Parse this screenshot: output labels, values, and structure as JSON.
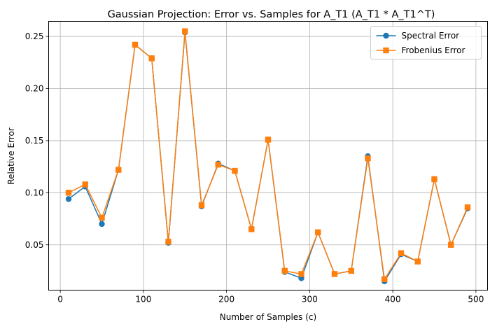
{
  "chart_data": {
    "type": "line",
    "title": "Gaussian Projection: Error vs. Samples for A_T1 (A_T1 * A_T1^T)",
    "xlabel": "Number of Samples (c)",
    "ylabel": "Relative Error",
    "xlim": [
      -14,
      514
    ],
    "ylim": [
      0.0065,
      0.2645
    ],
    "xticks": [
      0,
      100,
      200,
      300,
      400,
      500
    ],
    "yticks": [
      0.05,
      0.1,
      0.15,
      0.2,
      0.25
    ],
    "ytick_labels": [
      "0.05",
      "0.10",
      "0.15",
      "0.20",
      "0.25"
    ],
    "grid": true,
    "legend_position": "top-right",
    "x": [
      10,
      30,
      50,
      70,
      90,
      110,
      130,
      150,
      170,
      190,
      210,
      230,
      250,
      270,
      290,
      310,
      330,
      350,
      370,
      390,
      410,
      430,
      450,
      470,
      490
    ],
    "series": [
      {
        "name": "Spectral Error",
        "color": "#1f77b4",
        "marker": "circle",
        "values": [
          0.094,
          0.106,
          0.07,
          0.122,
          0.242,
          0.229,
          0.052,
          0.254,
          0.087,
          0.128,
          0.121,
          0.065,
          0.151,
          0.024,
          0.018,
          0.062,
          0.022,
          0.025,
          0.135,
          0.015,
          0.041,
          0.034,
          0.113,
          0.05,
          0.085
        ]
      },
      {
        "name": "Frobenius Error",
        "color": "#ff7f0e",
        "marker": "square",
        "values": [
          0.1,
          0.108,
          0.076,
          0.122,
          0.242,
          0.229,
          0.053,
          0.255,
          0.088,
          0.127,
          0.121,
          0.065,
          0.151,
          0.025,
          0.022,
          0.062,
          0.022,
          0.025,
          0.133,
          0.017,
          0.042,
          0.034,
          0.113,
          0.05,
          0.086
        ]
      }
    ]
  }
}
